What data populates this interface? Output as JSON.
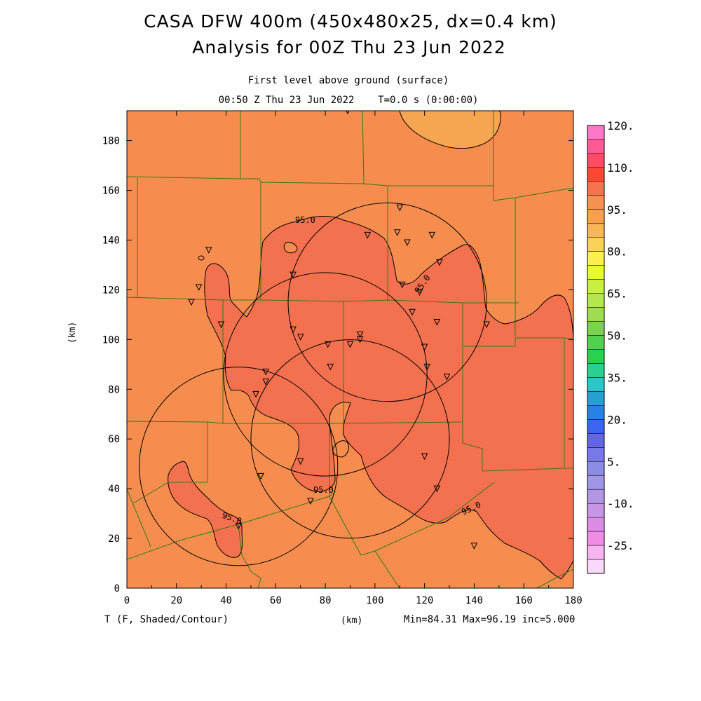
{
  "header": {
    "title_line1": "CASA DFW 400m (450x480x25, dx=0.4 km)",
    "title_line2": "Analysis for 00Z Thu 23 Jun 2022",
    "level": "First level above ground (surface)",
    "time": "00:50 Z Thu 23 Jun 2022    T=0.0 s (0:00:00)"
  },
  "footer": {
    "variable": "T (F, Shaded/Contour)",
    "x_unit": "(km)",
    "stats": "Min=84.31 Max=96.19 inc=5.000"
  },
  "axes": {
    "y_label": "(km)",
    "x_ticks": [
      "0",
      "20",
      "40",
      "60",
      "80",
      "100",
      "120",
      "140",
      "160",
      "180"
    ],
    "y_ticks": [
      "0",
      "20",
      "40",
      "60",
      "80",
      "100",
      "120",
      "140",
      "160",
      "180"
    ]
  },
  "contour_labels": [
    "95.0",
    "95.0",
    "95.0",
    "95.0",
    "95.0"
  ],
  "colorbar": {
    "labels": [
      "120.",
      "110.",
      "95.",
      "80.",
      "65.",
      "50.",
      "35.",
      "20.",
      "5.",
      "-10.",
      "-25."
    ],
    "colors": [
      "#ff78c8",
      "#ff5a96",
      "#ff4c64",
      "#ff4632",
      "#f7734f",
      "#f8904f",
      "#f8a050",
      "#f8b656",
      "#fad25a",
      "#fcf050",
      "#e8fc2c",
      "#c8f040",
      "#b4e650",
      "#a0dc50",
      "#7ad250",
      "#50d250",
      "#28d250",
      "#28d28c",
      "#28c8c8",
      "#28a0d2",
      "#2882e6",
      "#3c64f0",
      "#6464e6",
      "#7878e6",
      "#8c8ce6",
      "#a096e6",
      "#b496e6",
      "#c896e6",
      "#dc8ce6",
      "#f08ce6",
      "#f8b4f0",
      "#fad8fa"
    ]
  },
  "chart_data": {
    "type": "map",
    "xlim": [
      0,
      180
    ],
    "ylim": [
      0,
      192
    ],
    "field": "surface temperature (F)",
    "min": 84.31,
    "max": 96.19,
    "contour_interval": 5.0,
    "radar_rings": [
      {
        "center": [
          105,
          115
        ],
        "radius": 40
      },
      {
        "center": [
          80,
          86
        ],
        "radius": 41
      },
      {
        "center": [
          90,
          60
        ],
        "radius": 40
      },
      {
        "center": [
          45,
          49
        ],
        "radius": 40
      }
    ],
    "stations": [
      [
        89,
        192
      ],
      [
        110,
        153
      ],
      [
        109,
        143
      ],
      [
        97,
        142
      ],
      [
        113,
        139
      ],
      [
        123,
        142
      ],
      [
        126,
        131
      ],
      [
        67,
        126
      ],
      [
        111,
        122
      ],
      [
        118,
        119
      ],
      [
        33,
        136
      ],
      [
        29,
        121
      ],
      [
        26,
        115
      ],
      [
        38,
        106
      ],
      [
        67,
        104
      ],
      [
        70,
        101
      ],
      [
        94,
        102
      ],
      [
        94,
        100
      ],
      [
        90,
        98
      ],
      [
        81,
        98
      ],
      [
        115,
        111
      ],
      [
        125,
        107
      ],
      [
        145,
        106
      ],
      [
        120,
        97
      ],
      [
        82,
        89
      ],
      [
        121,
        89
      ],
      [
        129,
        85
      ],
      [
        56,
        87
      ],
      [
        56,
        83
      ],
      [
        52,
        78
      ],
      [
        120,
        53
      ],
      [
        70,
        51
      ],
      [
        54,
        45
      ],
      [
        125,
        40
      ],
      [
        74,
        35
      ],
      [
        45,
        25
      ],
      [
        140,
        17
      ]
    ]
  }
}
